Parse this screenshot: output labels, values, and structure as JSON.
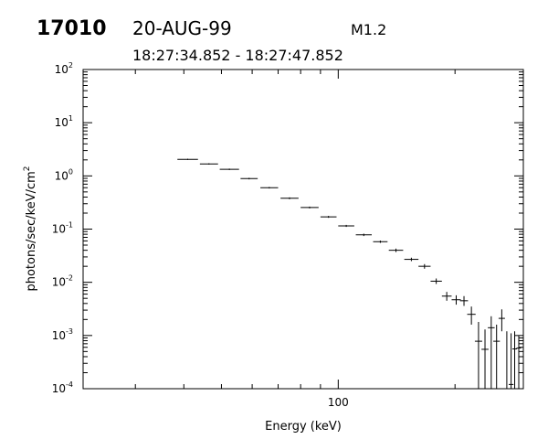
{
  "header": {
    "event_id": "17010",
    "date": "20-AUG-99",
    "flare_class": "M1.2",
    "time_range": "18:27:34.852 - 18:27:47.852"
  },
  "chart_data": {
    "type": "scatter",
    "xlabel": "Energy (keV)",
    "ylabel": "photons/sec/keV/cm",
    "ylabel_superscript": "2",
    "x_scale": "log",
    "y_scale": "log",
    "xlim": [
      22,
      300
    ],
    "ylim": [
      0.0001,
      100
    ],
    "x_tick_labels": [
      {
        "value": 100,
        "label": "100"
      }
    ],
    "y_tick_labels": [
      {
        "value": 0.0001,
        "base": "10",
        "exp": "-4"
      },
      {
        "value": 0.001,
        "base": "10",
        "exp": "-3"
      },
      {
        "value": 0.01,
        "base": "10",
        "exp": "-2"
      },
      {
        "value": 0.1,
        "base": "10",
        "exp": "-1"
      },
      {
        "value": 1,
        "base": "10",
        "exp": "0"
      },
      {
        "value": 10,
        "base": "10",
        "exp": "1"
      },
      {
        "value": 100,
        "base": "10",
        "exp": "2"
      }
    ],
    "grid": false,
    "points": [
      {
        "x_lo": 38.5,
        "x_hi": 43.5,
        "y": 2.05,
        "y_lo": 2.0,
        "y_hi": 2.1
      },
      {
        "x_lo": 44.0,
        "x_hi": 49.0,
        "y": 1.68,
        "y_lo": 1.63,
        "y_hi": 1.73
      },
      {
        "x_lo": 49.5,
        "x_hi": 55.5,
        "y": 1.33,
        "y_lo": 1.29,
        "y_hi": 1.37
      },
      {
        "x_lo": 56.0,
        "x_hi": 62.0,
        "y": 0.89,
        "y_lo": 0.86,
        "y_hi": 0.92
      },
      {
        "x_lo": 63.0,
        "x_hi": 70.0,
        "y": 0.6,
        "y_lo": 0.58,
        "y_hi": 0.62
      },
      {
        "x_lo": 71.0,
        "x_hi": 79.0,
        "y": 0.38,
        "y_lo": 0.365,
        "y_hi": 0.395
      },
      {
        "x_lo": 80.0,
        "x_hi": 89.0,
        "y": 0.255,
        "y_lo": 0.245,
        "y_hi": 0.265
      },
      {
        "x_lo": 90.0,
        "x_hi": 99.0,
        "y": 0.17,
        "y_lo": 0.163,
        "y_hi": 0.177
      },
      {
        "x_lo": 100.0,
        "x_hi": 110.0,
        "y": 0.115,
        "y_lo": 0.11,
        "y_hi": 0.12
      },
      {
        "x_lo": 111.0,
        "x_hi": 122.0,
        "y": 0.078,
        "y_lo": 0.074,
        "y_hi": 0.082
      },
      {
        "x_lo": 123.0,
        "x_hi": 134.0,
        "y": 0.058,
        "y_lo": 0.055,
        "y_hi": 0.061
      },
      {
        "x_lo": 135.0,
        "x_hi": 147.0,
        "y": 0.04,
        "y_lo": 0.037,
        "y_hi": 0.043
      },
      {
        "x_lo": 148.0,
        "x_hi": 161.0,
        "y": 0.027,
        "y_lo": 0.025,
        "y_hi": 0.029
      },
      {
        "x_lo": 161.0,
        "x_hi": 173.0,
        "y": 0.02,
        "y_lo": 0.018,
        "y_hi": 0.022
      },
      {
        "x_lo": 173.0,
        "x_hi": 185.0,
        "y": 0.0105,
        "y_lo": 0.0093,
        "y_hi": 0.0118
      },
      {
        "x_lo": 185.0,
        "x_hi": 196.0,
        "y": 0.0055,
        "y_lo": 0.0045,
        "y_hi": 0.0066
      },
      {
        "x_lo": 196.0,
        "x_hi": 207.0,
        "y": 0.0047,
        "y_lo": 0.0038,
        "y_hi": 0.0057
      },
      {
        "x_lo": 206.0,
        "x_hi": 216.0,
        "y": 0.0045,
        "y_lo": 0.0036,
        "y_hi": 0.0055
      },
      {
        "x_lo": 215.0,
        "x_hi": 226.0,
        "y": 0.0025,
        "y_lo": 0.0016,
        "y_hi": 0.0035
      },
      {
        "x_lo": 225.0,
        "x_hi": 235.0,
        "y": 0.00078,
        "y_lo": 0.0001,
        "y_hi": 0.0018
      },
      {
        "x_lo": 234.0,
        "x_hi": 244.0,
        "y": 0.00055,
        "y_lo": 0.0001,
        "y_hi": 0.0013
      },
      {
        "x_lo": 243.0,
        "x_hi": 253.0,
        "y": 0.0014,
        "y_lo": 0.0001,
        "y_hi": 0.0023
      },
      {
        "x_lo": 251.0,
        "x_hi": 261.0,
        "y": 0.00078,
        "y_lo": 0.0001,
        "y_hi": 0.0016
      },
      {
        "x_lo": 259.0,
        "x_hi": 269.0,
        "y": 0.0021,
        "y_lo": 0.0012,
        "y_hi": 0.0031
      },
      {
        "x_lo": 268.0,
        "x_hi": 276.0,
        "y": 0.0001,
        "y_lo": 0.0001,
        "y_hi": 0.0012
      },
      {
        "x_lo": 275.0,
        "x_hi": 283.0,
        "y": 0.00012,
        "y_lo": 0.0001,
        "y_hi": 0.0011
      },
      {
        "x_lo": 281.0,
        "x_hi": 289.0,
        "y": 0.00056,
        "y_lo": 0.0001,
        "y_hi": 0.0012
      },
      {
        "x_lo": 288.0,
        "x_hi": 296.0,
        "y": 0.00058,
        "y_lo": 0.0001,
        "y_hi": 0.001
      }
    ]
  }
}
